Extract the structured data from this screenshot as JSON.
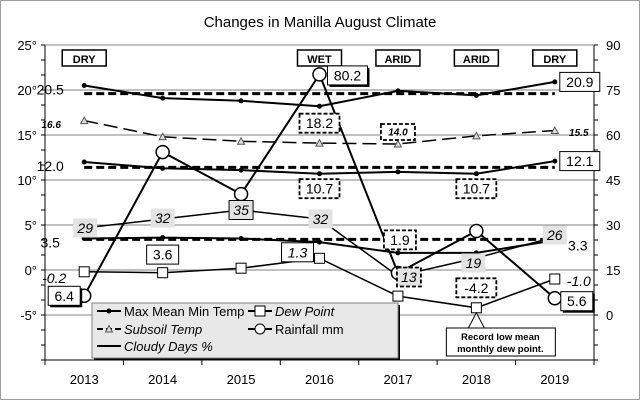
{
  "chart_data": {
    "type": "line",
    "title": "Changes in Manilla August Climate",
    "categories": [
      "2013",
      "2014",
      "2015",
      "2016",
      "2017",
      "2018",
      "2019"
    ],
    "y_left": {
      "range": [
        -10,
        25
      ],
      "ticks": [
        "25°",
        "20°",
        "15°",
        "10°",
        "5°",
        "0°",
        "-5°"
      ],
      "tick_values": [
        25,
        20,
        15,
        10,
        5,
        0,
        -5
      ]
    },
    "y_right": {
      "range": [
        -15,
        90
      ],
      "ticks": [
        "90",
        "75",
        "60",
        "45",
        "30",
        "15",
        "0"
      ],
      "tick_values": [
        90,
        75,
        60,
        45,
        30,
        15,
        0
      ]
    },
    "grid": true,
    "legend_placement": "bottom-left",
    "season_labels": [
      "DRY",
      "",
      "",
      "WET",
      "ARID",
      "ARID",
      "DRY"
    ],
    "series": [
      {
        "key": "max",
        "name": "Max Mean Min Temp",
        "axis": "left",
        "values": [
          20.5,
          19.1,
          18.8,
          18.2,
          19.9,
          19.4,
          20.9
        ],
        "average": 19.6
      },
      {
        "key": "mean",
        "name": "",
        "axis": "left",
        "values": [
          12.0,
          11.3,
          11.1,
          10.7,
          10.9,
          10.7,
          12.1
        ],
        "average": 11.4
      },
      {
        "key": "min",
        "name": "",
        "axis": "left",
        "values": [
          3.5,
          3.6,
          3.5,
          3.1,
          1.9,
          1.9,
          3.3
        ],
        "average": 3.4
      },
      {
        "key": "subsoil",
        "name": "Subsoil Temp",
        "axis": "left",
        "values": [
          16.6,
          14.8,
          14.3,
          14.1,
          14.0,
          14.9,
          15.5
        ]
      },
      {
        "key": "dew",
        "name": "Dew Point",
        "axis": "left",
        "values": [
          -0.2,
          -0.3,
          0.2,
          1.3,
          -2.9,
          -4.2,
          -1.0
        ]
      },
      {
        "key": "rain",
        "name": "Rainfall mm",
        "axis": "right",
        "values": [
          6.4,
          54.3,
          40.3,
          80.2,
          14,
          28,
          5.6
        ]
      },
      {
        "key": "cloud",
        "name": "Cloudy Days %",
        "axis": "right",
        "values": [
          29,
          32,
          35,
          32,
          13,
          19,
          26
        ]
      }
    ],
    "data_labels": [
      {
        "series": "max",
        "i": 0,
        "text": "20.5"
      },
      {
        "series": "max",
        "i": 3,
        "text": "18.2"
      },
      {
        "series": "max",
        "i": 6,
        "text": "20.9"
      },
      {
        "series": "subsoil",
        "i": 0,
        "text": "16.6"
      },
      {
        "series": "subsoil",
        "i": 4,
        "text": "14.0"
      },
      {
        "series": "subsoil",
        "i": 6,
        "text": "15.5"
      },
      {
        "series": "mean",
        "i": 0,
        "text": "12.0"
      },
      {
        "series": "mean",
        "i": 3,
        "text": "10.7"
      },
      {
        "series": "mean",
        "i": 5,
        "text": "10.7"
      },
      {
        "series": "mean",
        "i": 6,
        "text": "12.1"
      },
      {
        "series": "cloud",
        "i": 0,
        "text": "29"
      },
      {
        "series": "cloud",
        "i": 1,
        "text": "32"
      },
      {
        "series": "cloud",
        "i": 2,
        "text": "35"
      },
      {
        "series": "cloud",
        "i": 3,
        "text": "32"
      },
      {
        "series": "cloud",
        "i": 4,
        "text": "13"
      },
      {
        "series": "cloud",
        "i": 5,
        "text": "19"
      },
      {
        "series": "cloud",
        "i": 6,
        "text": "26"
      },
      {
        "series": "min",
        "i": 0,
        "text": "3.5"
      },
      {
        "series": "min",
        "i": 1,
        "text": "3.6"
      },
      {
        "series": "min",
        "i": 4,
        "text": "1.9"
      },
      {
        "series": "min",
        "i": 6,
        "text": "3.3"
      },
      {
        "series": "dew",
        "i": 0,
        "text": "-0.2"
      },
      {
        "series": "dew",
        "i": 3,
        "text": "1.3"
      },
      {
        "series": "dew",
        "i": 5,
        "text": "-4.2"
      },
      {
        "series": "dew",
        "i": 6,
        "text": "-1.0"
      },
      {
        "series": "rain",
        "i": 0,
        "text": "6.4"
      },
      {
        "series": "rain",
        "i": 3,
        "text": "80.2"
      },
      {
        "series": "rain",
        "i": 6,
        "text": "5.6"
      }
    ],
    "annotation": {
      "lines": [
        "Record low mean",
        "monthly dew point."
      ],
      "series": "dew",
      "i": 5
    }
  }
}
